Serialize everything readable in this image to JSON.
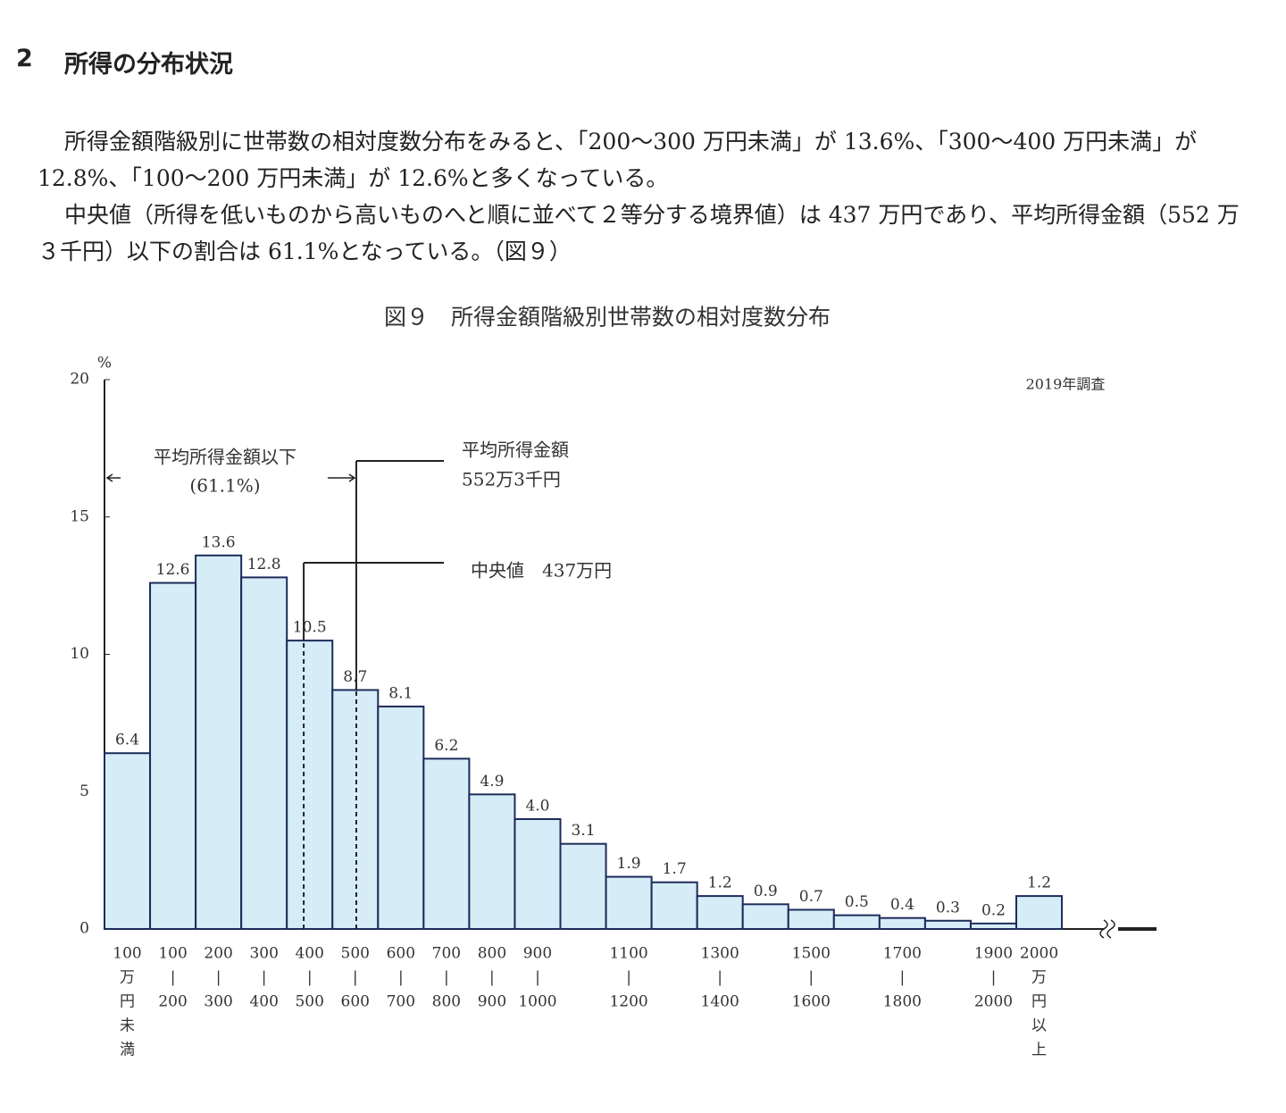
{
  "heading": {
    "number": "2",
    "title": "所得の分布状況"
  },
  "paragraphs": [
    "所得金額階級別に世帯数の相対度数分布をみると、「200～300 万円未満」が 13.6%、「300～400 万円未満」が 12.8%、「100～200 万円未満」が 12.6%と多くなっている。",
    "中央値（所得を低いものから高いものへと順に並べて２等分する境界値）は 437 万円であり、平均所得金額（552 万３千円）以下の割合は 61.1%となっている。（図９）"
  ],
  "chart_data": {
    "type": "bar",
    "title": "図９　所得金額階級別世帯数の相対度数分布",
    "y_unit": "%",
    "note": "2019年調査",
    "categories": [
      [
        "100",
        "万",
        "円",
        "未",
        "満"
      ],
      [
        "100",
        "|",
        "200"
      ],
      [
        "200",
        "|",
        "300"
      ],
      [
        "300",
        "|",
        "400"
      ],
      [
        "400",
        "|",
        "500"
      ],
      [
        "500",
        "|",
        "600"
      ],
      [
        "600",
        "|",
        "700"
      ],
      [
        "700",
        "|",
        "800"
      ],
      [
        "800",
        "|",
        "900"
      ],
      [
        "900",
        "|",
        "1000"
      ],
      null,
      [
        "1100",
        "|",
        "1200"
      ],
      null,
      [
        "1300",
        "|",
        "1400"
      ],
      null,
      [
        "1500",
        "|",
        "1600"
      ],
      null,
      [
        "1700",
        "|",
        "1800"
      ],
      null,
      [
        "1900",
        "|",
        "2000"
      ],
      [
        "2000",
        "万",
        "円",
        "以",
        "上"
      ]
    ],
    "values": [
      6.4,
      12.6,
      13.6,
      12.8,
      10.5,
      8.7,
      8.1,
      6.2,
      4.9,
      4.0,
      3.1,
      1.9,
      1.7,
      1.2,
      0.9,
      0.7,
      0.5,
      0.4,
      0.3,
      0.2,
      1.2
    ],
    "value_labels": [
      "6.4",
      "12.6",
      "13.6",
      "12.8",
      "10.5",
      "8.7",
      "8.1",
      "6.2",
      "4.9",
      "4.0",
      "3.1",
      "1.9",
      "1.7",
      "1.2",
      "0.9",
      "0.7",
      "0.5",
      "0.4",
      "0.3",
      "0.2",
      "1.2"
    ],
    "color": "#d6edf8",
    "ylim": [
      0,
      20
    ],
    "yticks": [
      0,
      5,
      10,
      15,
      20
    ],
    "median": {
      "label": "中央値　437万円",
      "value": 437
    },
    "mean": {
      "label": [
        "平均所得金額",
        "552万3千円"
      ],
      "value": 552.3
    },
    "below_mean": {
      "label": [
        "平均所得金額以下",
        "(61.1%)"
      ]
    }
  }
}
